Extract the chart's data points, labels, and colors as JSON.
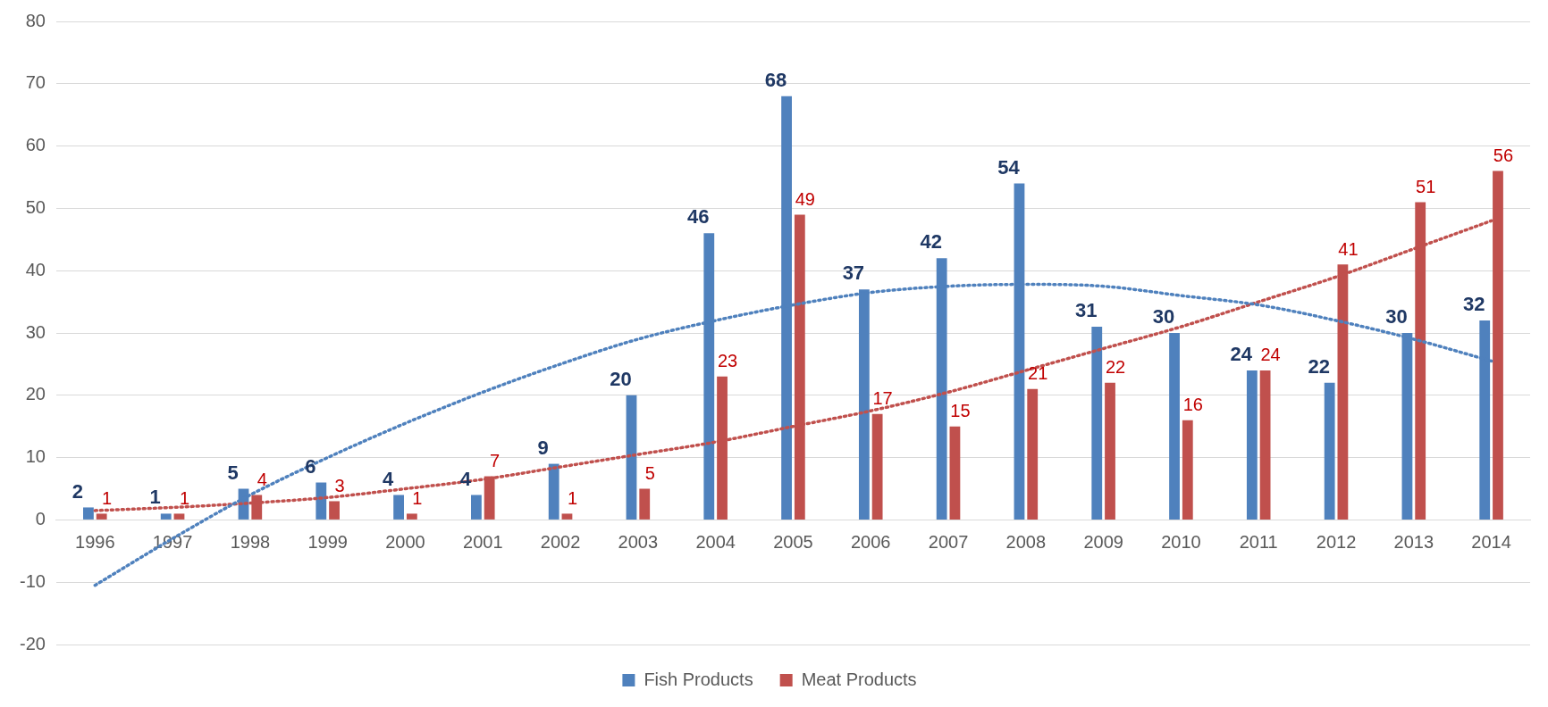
{
  "chart_data": {
    "type": "bar",
    "categories": [
      "1996",
      "1997",
      "1998",
      "1999",
      "2000",
      "2001",
      "2002",
      "2003",
      "2004",
      "2005",
      "2006",
      "2007",
      "2008",
      "2009",
      "2010",
      "2011",
      "2012",
      "2013",
      "2014"
    ],
    "series": [
      {
        "name": "Fish Products",
        "color": "#4f81bd",
        "values": [
          2,
          1,
          5,
          6,
          4,
          4,
          9,
          20,
          46,
          68,
          37,
          42,
          54,
          31,
          30,
          24,
          22,
          30,
          32
        ],
        "value_labels": [
          "2",
          "1",
          "5",
          "6",
          "4",
          "4",
          "9",
          "20",
          "46",
          "68",
          "37",
          "42",
          "54",
          "31",
          "30",
          "24",
          "22",
          "30",
          "32"
        ]
      },
      {
        "name": "Meat Products",
        "color": "#c0504d",
        "values": [
          1,
          1,
          4,
          3,
          1,
          7,
          1,
          5,
          23,
          49,
          17,
          15,
          21,
          22,
          16,
          24,
          41,
          51,
          56
        ],
        "value_labels": [
          "1",
          "1",
          "4",
          "3",
          "1",
          "7",
          "1",
          "5",
          "23",
          "49",
          "17",
          "15",
          "21",
          "22",
          "16",
          "24",
          "41",
          "51",
          "56"
        ]
      },
      {
        "type": "line",
        "color": "#4f81bd",
        "line_style": "dotted",
        "values": [
          -10.5,
          -3,
          4,
          10,
          15.5,
          20.5,
          25,
          29,
          32,
          34.5,
          36.5,
          37.5,
          37.8,
          37.5,
          36,
          34.5,
          32,
          29,
          25.5
        ]
      },
      {
        "type": "line",
        "color": "#c0504d",
        "line_style": "dotted",
        "values": [
          1.5,
          2,
          2.7,
          3.6,
          5,
          6.5,
          8.5,
          10.5,
          12.5,
          15,
          17.5,
          20.5,
          24,
          27.5,
          31,
          35,
          39,
          43.5,
          48
        ]
      }
    ],
    "ylim": [
      -20,
      80
    ],
    "yticks": [
      -20,
      -10,
      0,
      10,
      20,
      30,
      40,
      50,
      60,
      70,
      80
    ],
    "grid": "y",
    "legend": "bottom",
    "marker": "none"
  }
}
